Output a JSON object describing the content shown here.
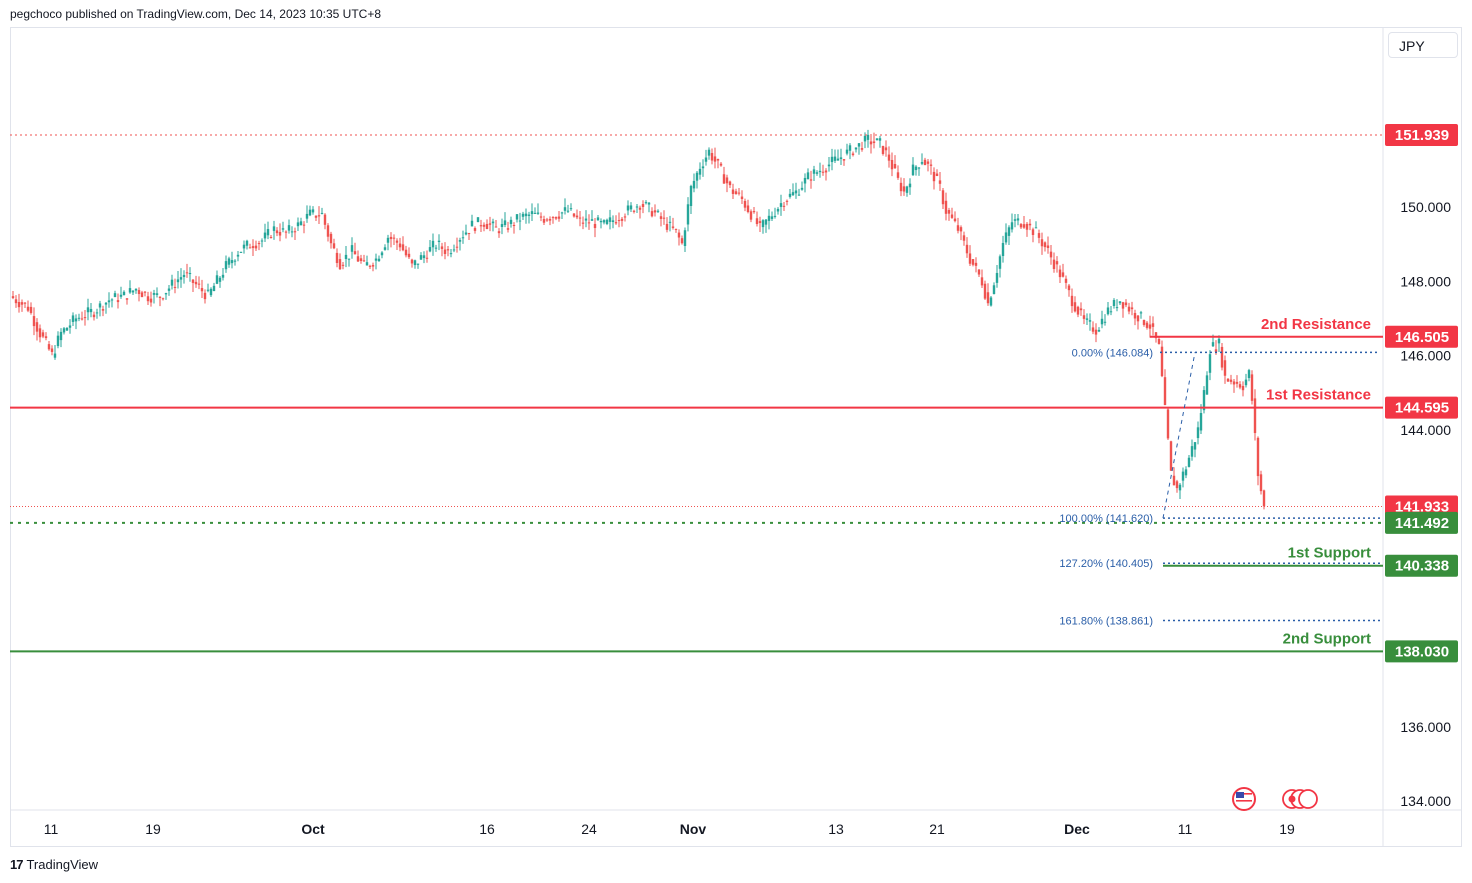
{
  "header": {
    "text": "pegchoco published on TradingView.com, Dec 14, 2023 10:35 UTC+8"
  },
  "footer": {
    "logo_mark": "17",
    "brand": "TradingView"
  },
  "currency": "JPY",
  "colors": {
    "up": "#26a69a",
    "down": "#ef5350",
    "resistance": "#f23645",
    "support": "#388e3c",
    "fib": "#2a5ea8",
    "axis_text": "#131722"
  },
  "chart_data": {
    "type": "candlestick",
    "x_tick_labels": [
      "11",
      "19",
      "Oct",
      "16",
      "24",
      "Nov",
      "13",
      "21",
      "Dec",
      "11",
      "19"
    ],
    "y_tick_labels": [
      "150.000",
      "148.000",
      "146.000",
      "144.000",
      "136.000",
      "134.000"
    ],
    "ylim": [
      133.7,
      152.5
    ],
    "grid": false,
    "levels": [
      {
        "name": "2nd Resistance",
        "value": 146.505,
        "label": "146.505",
        "kind": "resistance"
      },
      {
        "name": "1st Resistance",
        "value": 144.595,
        "label": "144.595",
        "kind": "resistance"
      },
      {
        "name": "1st Support",
        "value": 140.338,
        "label": "140.338",
        "kind": "support"
      },
      {
        "name": "2nd Support",
        "value": 138.03,
        "label": "138.030",
        "kind": "support"
      }
    ],
    "price_markers": [
      {
        "value": 151.939,
        "label": "151.939",
        "kind": "high"
      },
      {
        "value": 141.933,
        "label": "141.933",
        "kind": "last"
      },
      {
        "value": 141.492,
        "label": "141.492",
        "kind": "support-dotted"
      }
    ],
    "fib_levels": [
      {
        "label": "0.00% (146.084)",
        "value": 146.084
      },
      {
        "label": "100.00% (141.620)",
        "value": 141.62
      },
      {
        "label": "127.20% (140.405)",
        "value": 140.405
      },
      {
        "label": "161.80% (138.861)",
        "value": 138.861
      }
    ],
    "series": [
      {
        "name": "",
        "path": [
          [
            0,
            147.6
          ],
          [
            6,
            147.3
          ],
          [
            10,
            146.6
          ],
          [
            14,
            146.0
          ],
          [
            17,
            146.6
          ],
          [
            22,
            147.0
          ],
          [
            28,
            147.2
          ],
          [
            33,
            147.5
          ],
          [
            38,
            147.6
          ],
          [
            42,
            147.8
          ],
          [
            46,
            147.6
          ],
          [
            50,
            147.6
          ],
          [
            54,
            147.9
          ],
          [
            58,
            148.2
          ],
          [
            62,
            147.9
          ],
          [
            66,
            147.6
          ],
          [
            69,
            148.0
          ],
          [
            72,
            148.4
          ],
          [
            76,
            148.8
          ],
          [
            80,
            149.0
          ],
          [
            84,
            149.1
          ],
          [
            88,
            149.4
          ],
          [
            92,
            149.3
          ],
          [
            96,
            149.5
          ],
          [
            100,
            149.8
          ],
          [
            104,
            149.8
          ],
          [
            107,
            149.0
          ],
          [
            110,
            148.5
          ],
          [
            114,
            148.8
          ],
          [
            118,
            148.4
          ],
          [
            122,
            148.6
          ],
          [
            126,
            149.2
          ],
          [
            130,
            149.0
          ],
          [
            134,
            148.4
          ],
          [
            138,
            148.7
          ],
          [
            142,
            149.0
          ],
          [
            146,
            148.8
          ],
          [
            150,
            149.2
          ],
          [
            154,
            149.5
          ],
          [
            158,
            149.6
          ],
          [
            162,
            149.4
          ],
          [
            166,
            149.5
          ],
          [
            170,
            149.7
          ],
          [
            174,
            149.8
          ],
          [
            178,
            149.7
          ],
          [
            182,
            149.8
          ],
          [
            186,
            149.9
          ],
          [
            190,
            149.6
          ],
          [
            194,
            149.6
          ],
          [
            198,
            149.5
          ],
          [
            202,
            149.7
          ],
          [
            206,
            149.9
          ],
          [
            210,
            150.1
          ],
          [
            214,
            149.9
          ],
          [
            218,
            149.6
          ],
          [
            222,
            149.3
          ],
          [
            224,
            149.0
          ],
          [
            227,
            150.5
          ],
          [
            230,
            151.1
          ],
          [
            233,
            151.5
          ],
          [
            236,
            151.1
          ],
          [
            240,
            150.5
          ],
          [
            244,
            150.2
          ],
          [
            248,
            149.7
          ],
          [
            250,
            149.4
          ],
          [
            254,
            149.8
          ],
          [
            258,
            150.2
          ],
          [
            262,
            150.4
          ],
          [
            266,
            150.8
          ],
          [
            270,
            151.0
          ],
          [
            274,
            151.2
          ],
          [
            278,
            151.4
          ],
          [
            282,
            151.6
          ],
          [
            286,
            151.8
          ],
          [
            290,
            151.7
          ],
          [
            293,
            151.3
          ],
          [
            296,
            150.7
          ],
          [
            298,
            150.4
          ],
          [
            301,
            151.0
          ],
          [
            304,
            151.3
          ],
          [
            307,
            151.0
          ],
          [
            310,
            150.5
          ],
          [
            312,
            149.9
          ],
          [
            316,
            149.4
          ],
          [
            320,
            148.6
          ],
          [
            324,
            148.0
          ],
          [
            326,
            147.4
          ],
          [
            328,
            148.0
          ],
          [
            331,
            149.0
          ],
          [
            334,
            149.6
          ],
          [
            338,
            149.6
          ],
          [
            342,
            149.3
          ],
          [
            346,
            148.8
          ],
          [
            350,
            148.2
          ],
          [
            354,
            147.5
          ],
          [
            358,
            146.9
          ],
          [
            362,
            146.7
          ],
          [
            366,
            147.2
          ],
          [
            370,
            147.5
          ],
          [
            374,
            147.2
          ],
          [
            377,
            147.0
          ],
          [
            380,
            146.8
          ],
          [
            383,
            146.2
          ],
          [
            385,
            144.5
          ],
          [
            387,
            142.8
          ],
          [
            389,
            142.4
          ],
          [
            392,
            143.0
          ],
          [
            396,
            144.0
          ],
          [
            398,
            145.0
          ],
          [
            400,
            146.2
          ],
          [
            403,
            146.3
          ],
          [
            405,
            145.4
          ],
          [
            408,
            145.3
          ],
          [
            411,
            145.2
          ],
          [
            413,
            145.5
          ],
          [
            414,
            144.8
          ],
          [
            415,
            143.8
          ],
          [
            416,
            142.8
          ],
          [
            418,
            141.9
          ]
        ]
      }
    ]
  },
  "event_icons": [
    "us-flag-icon",
    "economic-events-icon"
  ]
}
